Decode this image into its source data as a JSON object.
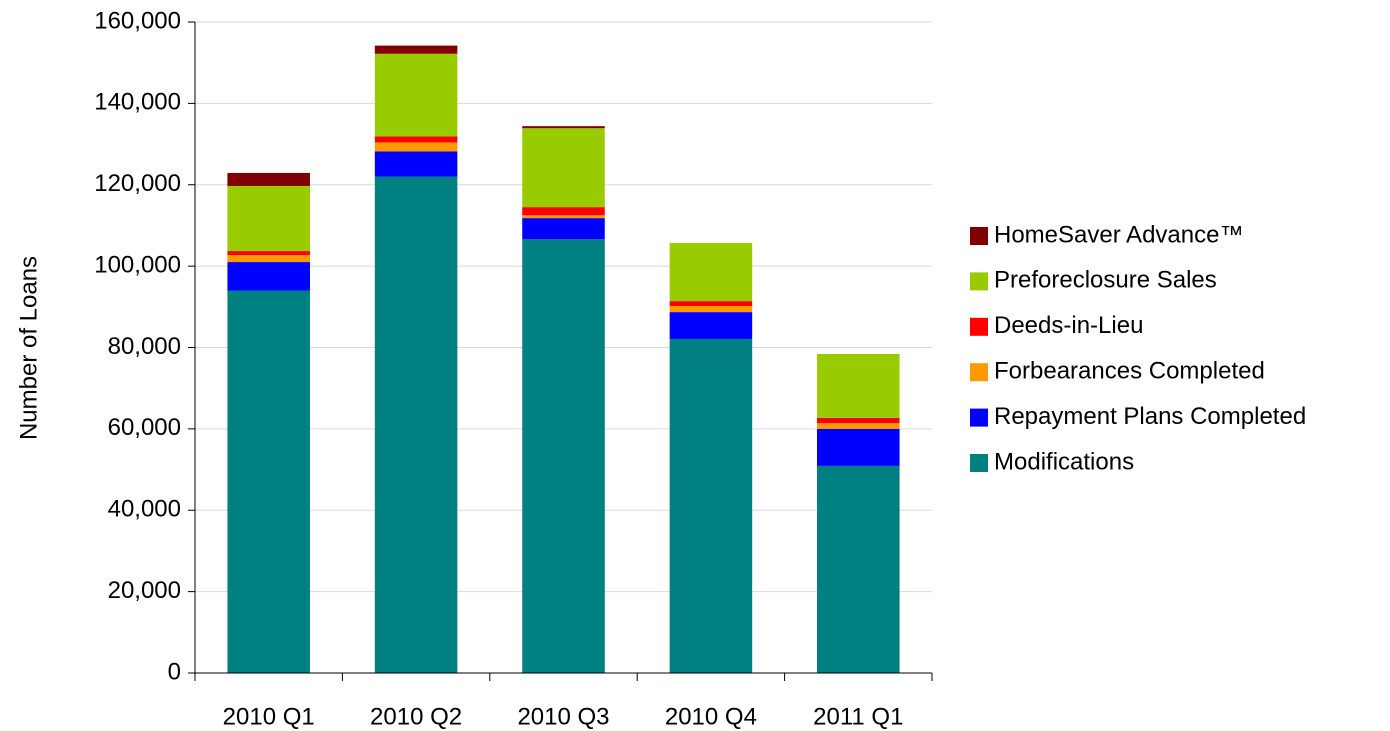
{
  "chart_data": {
    "type": "stacked-bar",
    "y_label": "Number of Loans",
    "categories": [
      "2010 Q1",
      "2010 Q2",
      "2010 Q3",
      "2010 Q4",
      "2011 Q1"
    ],
    "series": [
      {
        "name": "Modifications",
        "color": "#008080",
        "values": [
          94000,
          122000,
          106600,
          82100,
          50900
        ]
      },
      {
        "name": "Repayment Plans Completed",
        "color": "#0000ff",
        "values": [
          7000,
          6200,
          5200,
          6600,
          9100
        ]
      },
      {
        "name": "Forbearances Completed",
        "color": "#ff9900",
        "values": [
          1700,
          2200,
          700,
          1500,
          1400
        ]
      },
      {
        "name": "Deeds-in-Lieu",
        "color": "#ff0000",
        "values": [
          1000,
          1500,
          2000,
          1200,
          1300
        ]
      },
      {
        "name": "Preforeclosure Sales",
        "color": "#99cc00",
        "values": [
          16000,
          20300,
          19400,
          14300,
          15700
        ]
      },
      {
        "name": "HomeSaver Advance™",
        "color": "#800000",
        "values": [
          3200,
          2000,
          500,
          0,
          0
        ]
      }
    ],
    "ylim": [
      0,
      160000
    ],
    "yticks": [
      0,
      {
        "value": 20000,
        "label": "20,000"
      },
      {
        "value": 40000,
        "label": "40,000"
      },
      {
        "value": 60000,
        "label": "60,000"
      },
      {
        "value": 80000,
        "label": "80,000"
      },
      {
        "value": 100000,
        "label": "100,000"
      },
      {
        "value": 120000,
        "label": "120,000"
      },
      {
        "value": 140000,
        "label": "140,000"
      },
      {
        "value": 160000,
        "label": "160,000"
      }
    ],
    "grid": true,
    "legend": "right"
  }
}
